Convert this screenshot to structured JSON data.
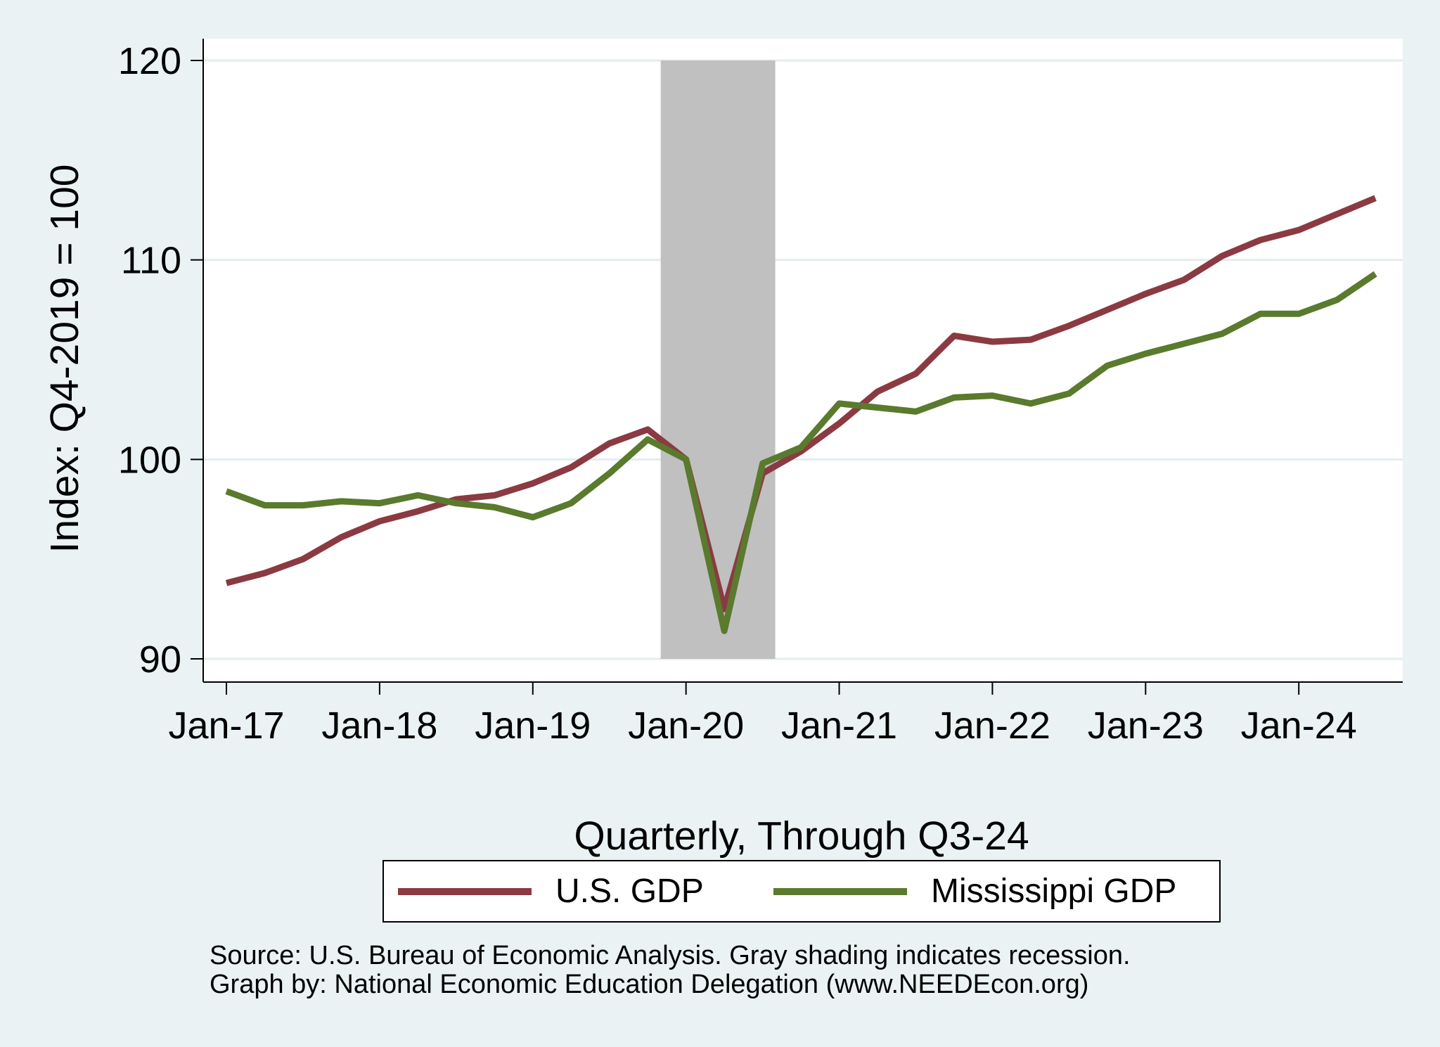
{
  "chart_data": {
    "type": "line",
    "ylabel": "Index: Q4-2019 = 100",
    "xlabel": "Quarterly, Through Q3-24",
    "ylim": [
      90,
      120
    ],
    "yticks": [
      90,
      100,
      110,
      120
    ],
    "xticks": [
      "Jan-17",
      "Jan-18",
      "Jan-19",
      "Jan-20",
      "Jan-21",
      "Jan-22",
      "Jan-23",
      "Jan-24"
    ],
    "grid": true,
    "legend_position": "bottom",
    "recession_shading": {
      "start": "2020-01",
      "end": "2020-07"
    },
    "x": [
      "2017-01",
      "2017-04",
      "2017-07",
      "2017-10",
      "2018-01",
      "2018-04",
      "2018-07",
      "2018-10",
      "2019-01",
      "2019-04",
      "2019-07",
      "2019-10",
      "2020-01",
      "2020-04",
      "2020-07",
      "2020-10",
      "2021-01",
      "2021-04",
      "2021-07",
      "2021-10",
      "2022-01",
      "2022-04",
      "2022-07",
      "2022-10",
      "2023-01",
      "2023-04",
      "2023-07",
      "2023-10",
      "2024-01",
      "2024-04",
      "2024-07"
    ],
    "series": [
      {
        "name": "U.S. GDP",
        "color": "#8b3a42",
        "values": [
          93.8,
          94.3,
          95.0,
          96.1,
          96.9,
          97.4,
          98.0,
          98.2,
          98.8,
          99.6,
          100.8,
          101.5,
          100.0,
          92.5,
          99.3,
          100.4,
          101.8,
          103.4,
          104.3,
          106.2,
          105.9,
          106.0,
          106.7,
          107.5,
          108.3,
          109.0,
          110.2,
          111.0,
          111.5,
          112.3,
          113.1
        ]
      },
      {
        "name": "Mississippi GDP",
        "color": "#5a7a2e",
        "values": [
          98.4,
          97.7,
          97.7,
          97.9,
          97.8,
          98.2,
          97.8,
          97.6,
          97.1,
          97.8,
          99.3,
          101.0,
          100.0,
          91.4,
          99.8,
          100.6,
          102.8,
          102.6,
          102.4,
          103.1,
          103.2,
          102.8,
          103.3,
          104.7,
          105.3,
          105.8,
          106.3,
          107.3,
          107.3,
          108.0,
          109.3
        ]
      }
    ]
  },
  "source_line1": "Source: U.S. Bureau of Economic Analysis. Gray shading indicates recession.",
  "source_line2": "Graph by: National Economic Education Delegation (www.NEEDEcon.org)"
}
